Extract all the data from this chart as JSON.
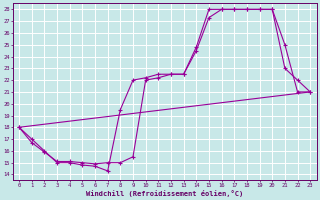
{
  "xlabel": "Windchill (Refroidissement éolien,°C)",
  "bg_color": "#c8e8e8",
  "grid_color": "#b0c8c8",
  "line_color": "#990099",
  "xlim": [
    -0.5,
    23.5
  ],
  "ylim": [
    13.5,
    28.5
  ],
  "xticks": [
    0,
    1,
    2,
    3,
    4,
    5,
    6,
    7,
    8,
    9,
    10,
    11,
    12,
    13,
    14,
    15,
    16,
    17,
    18,
    19,
    20,
    21,
    22,
    23
  ],
  "yticks": [
    14,
    15,
    16,
    17,
    18,
    19,
    20,
    21,
    22,
    23,
    24,
    25,
    26,
    27,
    28
  ],
  "line1_x": [
    0,
    1,
    2,
    3,
    4,
    5,
    6,
    7,
    8,
    9,
    10,
    11,
    12,
    13,
    14,
    15,
    16,
    17,
    18,
    19,
    20,
    21,
    22,
    23
  ],
  "line1_y": [
    18,
    17,
    16,
    15,
    15,
    14.8,
    14.7,
    14.3,
    19.5,
    22,
    22.2,
    22.5,
    22.5,
    22.5,
    24.5,
    27.3,
    28,
    28,
    28,
    28,
    28,
    25,
    21,
    21
  ],
  "line2_x": [
    0,
    1,
    2,
    3,
    4,
    5,
    6,
    7,
    8,
    9,
    10,
    11,
    12,
    13,
    14,
    15,
    16,
    17,
    18,
    19,
    20,
    21,
    22,
    23
  ],
  "line2_y": [
    18,
    16.7,
    15.9,
    15.1,
    15.1,
    15.0,
    14.9,
    15.0,
    15.0,
    15.5,
    22,
    22.2,
    22.5,
    22.5,
    24.8,
    28,
    28,
    28,
    28,
    28,
    28,
    23,
    22,
    21
  ],
  "line3_x": [
    0,
    23
  ],
  "line3_y": [
    18,
    21
  ]
}
